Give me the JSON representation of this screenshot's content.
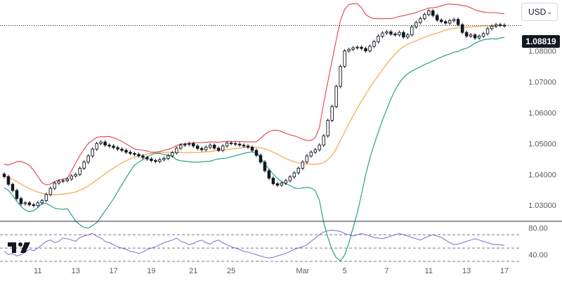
{
  "toolbar": {
    "currency_label": "USD"
  },
  "last_price_label": "1.08819",
  "colors": {
    "upper_band": "#e0414f",
    "middle_band": "#f5a03c",
    "lower_band": "#169b82",
    "rsi": "#7e6ad1",
    "candle": "#131722",
    "price_line": "#131722",
    "axis_text": "#555a66"
  },
  "chart_data": {
    "type": "candlestick",
    "instrument_quote_currency": "USD",
    "price_axis": {
      "ticks": [
        "1.08000",
        "1.07000",
        "1.06000",
        "1.05000",
        "1.04000",
        "1.03000"
      ],
      "range": [
        1.0255,
        1.0965
      ]
    },
    "time_axis": {
      "tick_labels": [
        "11",
        "13",
        "17",
        "19",
        "21",
        "25",
        "Mar",
        "5",
        "7",
        "11",
        "13",
        "17"
      ],
      "tick_bar_index": [
        8,
        17,
        26,
        35,
        45,
        54,
        71,
        81,
        91,
        101,
        110,
        119
      ]
    },
    "last_price": 1.08819,
    "close": [
      1.0393,
      1.0368,
      1.0348,
      1.0322,
      1.0305,
      1.0308,
      1.0302,
      1.0299,
      1.0308,
      1.0315,
      1.0335,
      1.0355,
      1.0372,
      1.0378,
      1.038,
      1.0385,
      1.0395,
      1.04,
      1.042,
      1.044,
      1.046,
      1.0482,
      1.05,
      1.0505,
      1.0495,
      1.0492,
      1.0487,
      1.0482,
      1.0478,
      1.0472,
      1.0468,
      1.0465,
      1.046,
      1.0455,
      1.045,
      1.0445,
      1.0442,
      1.0448,
      1.0452,
      1.046,
      1.047,
      1.0485,
      1.0495,
      1.0497,
      1.05,
      1.0492,
      1.0484,
      1.048,
      1.0488,
      1.0495,
      1.0485,
      1.0478,
      1.0492,
      1.0502,
      1.05,
      1.0498,
      1.0495,
      1.0492,
      1.0488,
      1.0478,
      1.0462,
      1.044,
      1.0412,
      1.0388,
      1.037,
      1.0365,
      1.0372,
      1.038,
      1.0392,
      1.0405,
      1.042,
      1.044,
      1.046,
      1.0472,
      1.048,
      1.0495,
      1.0525,
      1.0575,
      1.062,
      1.0685,
      1.075,
      1.08,
      1.0805,
      1.081,
      1.0812,
      1.0808,
      1.08,
      1.0815,
      1.083,
      1.0848,
      1.0858,
      1.0862,
      1.0855,
      1.0852,
      1.086,
      1.0845,
      1.0852,
      1.0878,
      1.0892,
      1.0905,
      1.0918,
      1.093,
      1.0915,
      1.09,
      1.0895,
      1.089,
      1.0898,
      1.0902,
      1.0885,
      1.086,
      1.0848,
      1.0852,
      1.0842,
      1.0848,
      1.0856,
      1.0872,
      1.088,
      1.0885,
      1.0883,
      1.0882
    ],
    "bollinger": {
      "upper": [
        1.0433,
        1.043,
        1.0436,
        1.0441,
        1.0442,
        1.0437,
        1.0429,
        1.0413,
        1.0394,
        1.0373,
        1.0366,
        1.0369,
        1.0377,
        1.0382,
        1.0385,
        1.0387,
        1.0411,
        1.0437,
        1.0461,
        1.0482,
        1.05,
        1.051,
        1.052,
        1.0522,
        1.0522,
        1.0523,
        1.0519,
        1.0514,
        1.0507,
        1.0499,
        1.0491,
        1.0482,
        1.048,
        1.0478,
        1.0476,
        1.0472,
        1.0472,
        1.0474,
        1.0478,
        1.0481,
        1.0486,
        1.0494,
        1.0498,
        1.0499,
        1.0501,
        1.0502,
        1.0503,
        1.0503,
        1.0504,
        1.0505,
        1.0505,
        1.0504,
        1.0506,
        1.0507,
        1.0507,
        1.0507,
        1.0506,
        1.0506,
        1.0505,
        1.0505,
        1.0506,
        1.0517,
        1.053,
        1.0539,
        1.0543,
        1.0543,
        1.0539,
        1.0533,
        1.0528,
        1.0525,
        1.052,
        1.0514,
        1.051,
        1.051,
        1.0519,
        1.0552,
        1.0631,
        1.07,
        1.0769,
        1.0836,
        1.09,
        1.0935,
        1.095,
        1.0953,
        1.0953,
        1.094,
        1.0918,
        1.0909,
        1.0905,
        1.0905,
        1.0904,
        1.0905,
        1.0905,
        1.0907,
        1.0912,
        1.0914,
        1.0918,
        1.0921,
        1.0924,
        1.093,
        1.0934,
        1.0939,
        1.094,
        1.0942,
        1.0946,
        1.095,
        1.0952,
        1.095,
        1.095,
        1.0947,
        1.0945,
        1.094,
        1.0933,
        1.0929,
        1.0926,
        1.0924,
        1.0924,
        1.0924,
        1.0922,
        1.092
      ],
      "middle": [
        1.0395,
        1.0389,
        1.0384,
        1.0377,
        1.0369,
        1.0361,
        1.0354,
        1.0348,
        1.0343,
        1.0339,
        1.0336,
        1.0334,
        1.0334,
        1.0335,
        1.0336,
        1.0338,
        1.034,
        1.0343,
        1.0349,
        1.0355,
        1.0363,
        1.0372,
        1.0382,
        1.0392,
        1.0402,
        1.0412,
        1.042,
        1.0429,
        1.0437,
        1.0444,
        1.0451,
        1.0456,
        1.046,
        1.0463,
        1.0466,
        1.0468,
        1.047,
        1.0471,
        1.0471,
        1.0472,
        1.0472,
        1.0471,
        1.0471,
        1.0471,
        1.0471,
        1.0471,
        1.0471,
        1.0472,
        1.0473,
        1.0474,
        1.0476,
        1.0477,
        1.0479,
        1.048,
        1.0482,
        1.0484,
        1.0485,
        1.0487,
        1.0488,
        1.0489,
        1.0488,
        1.0486,
        1.0482,
        1.0478,
        1.0472,
        1.0465,
        1.0458,
        1.0451,
        1.0446,
        1.0441,
        1.0437,
        1.0435,
        1.0434,
        1.0433,
        1.0433,
        1.0434,
        1.0438,
        1.0448,
        1.0462,
        1.0483,
        1.051,
        1.0537,
        1.0564,
        1.059,
        1.0614,
        1.0638,
        1.0659,
        1.0681,
        1.0701,
        1.0721,
        1.074,
        1.0758,
        1.0775,
        1.079,
        1.0804,
        1.0814,
        1.0822,
        1.0828,
        1.0833,
        1.0839,
        1.0845,
        1.085,
        1.0854,
        1.0858,
        1.0863,
        1.0868,
        1.0871,
        1.0873,
        1.0874,
        1.0876,
        1.0877,
        1.0878,
        1.0879,
        1.088,
        1.0881,
        1.0881,
        1.0882,
        1.0881,
        1.0882,
        1.0882
      ],
      "lower": [
        1.0357,
        1.0348,
        1.0332,
        1.0313,
        1.0296,
        1.0285,
        1.0279,
        1.0283,
        1.0292,
        1.0305,
        1.0306,
        1.0299,
        1.0291,
        1.0288,
        1.0287,
        1.0289,
        1.0269,
        1.0249,
        1.0237,
        1.0228,
        1.0226,
        1.0234,
        1.0244,
        1.0262,
        1.0282,
        1.0301,
        1.0321,
        1.0344,
        1.0367,
        1.0389,
        1.0411,
        1.043,
        1.044,
        1.0448,
        1.0456,
        1.0464,
        1.0468,
        1.0468,
        1.0464,
        1.0463,
        1.0458,
        1.0448,
        1.0444,
        1.0443,
        1.0441,
        1.044,
        1.0439,
        1.0441,
        1.0442,
        1.0443,
        1.0447,
        1.045,
        1.0452,
        1.0453,
        1.0457,
        1.0461,
        1.0464,
        1.0468,
        1.0471,
        1.0473,
        1.047,
        1.0455,
        1.0434,
        1.0417,
        1.0401,
        1.0387,
        1.0377,
        1.0369,
        1.0364,
        1.0357,
        1.0354,
        1.0356,
        1.0358,
        1.0356,
        1.0347,
        1.0316,
        1.0245,
        1.0196,
        1.0155,
        1.013,
        1.012,
        1.0139,
        1.0178,
        1.0227,
        1.0275,
        1.0336,
        1.04,
        1.0453,
        1.0497,
        1.0537,
        1.0576,
        1.0611,
        1.0645,
        1.0673,
        1.0696,
        1.0714,
        1.0726,
        1.0735,
        1.0742,
        1.0748,
        1.0756,
        1.0761,
        1.0768,
        1.0774,
        1.078,
        1.0786,
        1.079,
        1.0796,
        1.0798,
        1.0805,
        1.0809,
        1.0816,
        1.0825,
        1.0831,
        1.0836,
        1.0838,
        1.084,
        1.0838,
        1.0842,
        1.0844
      ]
    },
    "rsi": {
      "ticks": [
        "80.00",
        "40.00"
      ],
      "range": [
        30,
        85
      ],
      "levels": [
        70,
        50,
        30
      ],
      "values": [
        45,
        40,
        42,
        38,
        40,
        44,
        48,
        46,
        50,
        55,
        60,
        62,
        58,
        60,
        65,
        64,
        62,
        60,
        66,
        68,
        70,
        72,
        68,
        65,
        60,
        58,
        55,
        52,
        50,
        48,
        45,
        44,
        42,
        44,
        48,
        50,
        52,
        55,
        58,
        60,
        62,
        65,
        60,
        58,
        55,
        57,
        60,
        62,
        58,
        56,
        60,
        62,
        58,
        55,
        52,
        50,
        48,
        45,
        44,
        42,
        40,
        38,
        36,
        35,
        36,
        38,
        40,
        42,
        45,
        48,
        50,
        52,
        55,
        60,
        65,
        70,
        74,
        76,
        77,
        76,
        75,
        72,
        70,
        68,
        70,
        72,
        70,
        68,
        66,
        65,
        64,
        66,
        68,
        70,
        72,
        70,
        68,
        66,
        64,
        62,
        65,
        68,
        70,
        68,
        66,
        62,
        58,
        55,
        56,
        58,
        60,
        62,
        64,
        62,
        60,
        58,
        56,
        55,
        55,
        54
      ]
    }
  }
}
